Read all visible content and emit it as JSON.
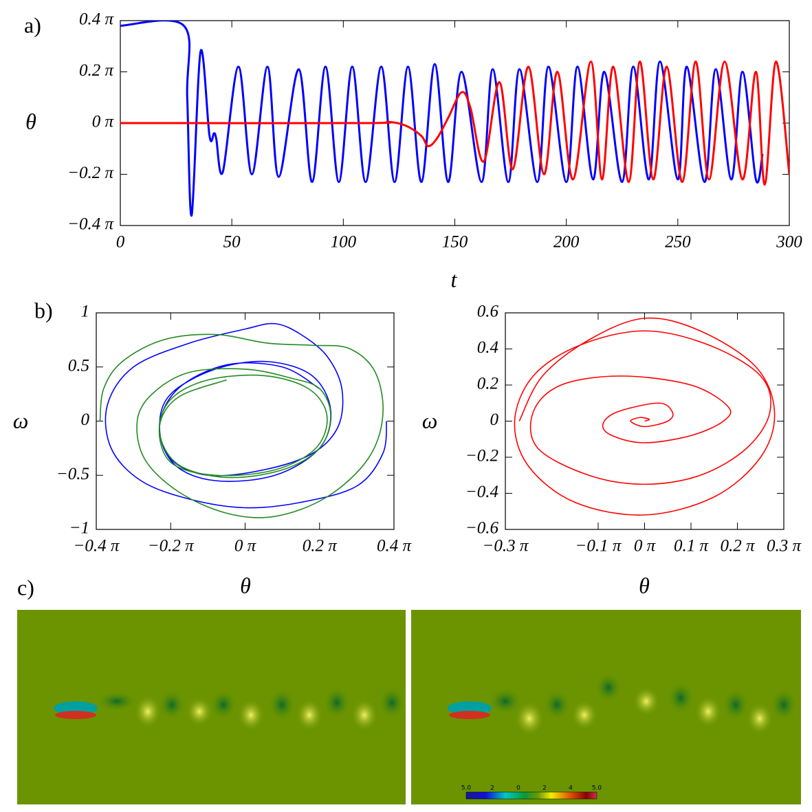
{
  "panel_labels": [
    "a)",
    "b)",
    "c)"
  ],
  "colorbar_labels": [
    "5.0",
    "2",
    "0",
    "2",
    "4",
    "5.0"
  ],
  "chart_data": [
    {
      "type": "line",
      "x_label": "t",
      "y_label": "θ",
      "xlim": [
        0,
        300
      ],
      "xticks": [
        0,
        50,
        100,
        150,
        200,
        250,
        300
      ],
      "ylim": [
        -0.4,
        0.4
      ],
      "yticks": [
        {
          "value": 0.4,
          "label": "0.4 π"
        },
        {
          "value": 0.2,
          "label": "0.2 π"
        },
        {
          "value": 0,
          "label": "0 π"
        },
        {
          "value": -0.2,
          "label": "−0.2 π"
        },
        {
          "value": -0.4,
          "label": "−0.4 π"
        }
      ],
      "series": [
        {
          "color": "#0000ff",
          "x": [
            0,
            28.5,
            30,
            32,
            36,
            40,
            42,
            43,
            46,
            53,
            59,
            66,
            71,
            80,
            86,
            92,
            98,
            104,
            110,
            117,
            123,
            129,
            135,
            141,
            147,
            153,
            162,
            167,
            174,
            179,
            187,
            192,
            200,
            205,
            212,
            217,
            225,
            230,
            237,
            242,
            250,
            254,
            262,
            267,
            274,
            279,
            285,
            288
          ],
          "values": [
            0.38,
            0.38,
            0.1,
            -0.36,
            0.28,
            -0.05,
            -0.04,
            -0.06,
            -0.19,
            0.22,
            -0.2,
            0.22,
            -0.21,
            0.21,
            -0.23,
            0.22,
            -0.23,
            0.22,
            -0.23,
            0.22,
            -0.23,
            0.22,
            -0.23,
            0.23,
            -0.23,
            0.2,
            -0.23,
            0.21,
            -0.23,
            0.21,
            -0.23,
            0.22,
            -0.23,
            0.22,
            -0.22,
            0.2,
            -0.23,
            0.22,
            -0.22,
            0.24,
            -0.22,
            0.22,
            -0.23,
            0.21,
            -0.22,
            0.2,
            -0.22,
            -0.12
          ]
        },
        {
          "color": "#ff0000",
          "x": [
            0,
            110,
            120,
            128,
            135,
            138,
            142,
            147,
            153,
            157,
            163,
            170,
            176,
            183,
            190,
            196,
            203,
            211,
            216,
            221,
            228,
            233,
            239,
            245,
            252,
            258,
            264,
            271,
            279,
            285,
            289,
            294,
            300
          ],
          "values": [
            0,
            0,
            0.005,
            -0.01,
            -0.05,
            -0.09,
            -0.06,
            0.02,
            0.12,
            0.06,
            -0.15,
            0.16,
            -0.18,
            0.22,
            -0.2,
            0.2,
            -0.22,
            0.24,
            -0.22,
            0.22,
            -0.23,
            0.24,
            -0.22,
            0.22,
            -0.23,
            0.24,
            -0.22,
            0.24,
            -0.22,
            0.2,
            -0.24,
            0.24,
            -0.2
          ]
        }
      ]
    },
    {
      "type": "line",
      "x_label": "θ",
      "y_label": "ω",
      "xlim": [
        -0.4,
        0.4
      ],
      "xticks": [
        {
          "value": -0.4,
          "label": "−0.4 π"
        },
        {
          "value": -0.2,
          "label": "−0.2 π"
        },
        {
          "value": 0,
          "label": "0 π"
        },
        {
          "value": 0.2,
          "label": "0.2 π"
        },
        {
          "value": 0.4,
          "label": "0.4 π"
        }
      ],
      "ylim": [
        -1,
        1
      ],
      "yticks": [
        1,
        0.5,
        0,
        {
          "value": -0.5,
          "label": "−0.5"
        },
        {
          "value": -1,
          "label": "−1"
        }
      ],
      "series": [
        {
          "color": "#0000ff",
          "x": [
            0.38,
            0.37,
            0.3,
            0.15,
            0,
            -0.15,
            -0.28,
            -0.36,
            -0.37,
            -0.3,
            -0.15,
            0,
            0.08,
            0.15,
            0.22,
            0.26,
            0.25,
            0.18,
            0.05,
            -0.1,
            -0.2,
            -0.23,
            -0.2,
            -0.08,
            0.06,
            0.18,
            0.23,
            0.2,
            0.08,
            -0.08,
            -0.19,
            -0.23,
            -0.18,
            -0.05,
            0.1,
            0.2
          ],
          "values": [
            0,
            -0.3,
            -0.6,
            -0.75,
            -0.8,
            -0.72,
            -0.55,
            -0.25,
            0.15,
            0.5,
            0.72,
            0.85,
            0.9,
            0.8,
            0.6,
            0.3,
            -0.05,
            -0.3,
            -0.45,
            -0.5,
            -0.35,
            -0.05,
            0.25,
            0.48,
            0.55,
            0.42,
            0.1,
            -0.25,
            -0.5,
            -0.55,
            -0.4,
            -0.05,
            0.3,
            0.52,
            0.5,
            0.3
          ]
        },
        {
          "color": "#228b22",
          "x": [
            -0.39,
            -0.38,
            -0.33,
            -0.22,
            -0.08,
            0.06,
            0.18,
            0.28,
            0.35,
            0.37,
            0.33,
            0.22,
            0.08,
            -0.05,
            -0.18,
            -0.27,
            -0.29,
            -0.25,
            -0.15,
            0,
            0.12,
            0.2,
            0.23,
            0.2,
            0.1,
            -0.05,
            -0.18,
            -0.23,
            -0.2,
            -0.1,
            0.05,
            0.17,
            0.22,
            0.19,
            0.08,
            -0.08,
            -0.2,
            -0.23,
            -0.18,
            -0.05
          ],
          "values": [
            0,
            0.3,
            0.55,
            0.75,
            0.8,
            0.72,
            0.7,
            0.67,
            0.45,
            0.05,
            -0.35,
            -0.7,
            -0.88,
            -0.85,
            -0.65,
            -0.35,
            0,
            0.25,
            0.45,
            0.48,
            0.4,
            0.3,
            0.05,
            -0.25,
            -0.45,
            -0.52,
            -0.4,
            -0.1,
            0.2,
            0.38,
            0.42,
            0.3,
            0.05,
            -0.25,
            -0.45,
            -0.5,
            -0.38,
            -0.05,
            0.22,
            0.38
          ]
        }
      ]
    },
    {
      "type": "line",
      "x_label": "θ",
      "y_label": "ω",
      "xlim": [
        -0.3,
        0.3
      ],
      "xticks": [
        {
          "value": -0.3,
          "label": "−0.3 π"
        },
        {
          "value": -0.1,
          "label": "−0.1 π"
        },
        {
          "value": 0,
          "label": "0 π"
        },
        {
          "value": 0.1,
          "label": "0.1 π"
        },
        {
          "value": 0.2,
          "label": "0.2 π"
        },
        {
          "value": 0.3,
          "label": "0.3 π"
        }
      ],
      "ylim": [
        -0.6,
        0.6
      ],
      "yticks": [
        0.6,
        0.4,
        0.2,
        0,
        {
          "value": -0.2,
          "label": "−0.2"
        },
        {
          "value": -0.4,
          "label": "−0.4"
        },
        {
          "value": -0.6,
          "label": "−0.6"
        }
      ],
      "series": [
        {
          "color": "#ff0000",
          "x": [
            0,
            0.01,
            -0.01,
            -0.03,
            0,
            0.05,
            0.06,
            0.03,
            -0.06,
            -0.09,
            -0.07,
            0,
            0.1,
            0.17,
            0.18,
            0.1,
            -0.05,
            -0.18,
            -0.24,
            -0.23,
            -0.12,
            0,
            0.12,
            0.22,
            0.27,
            0.25,
            0.14,
            0,
            -0.14,
            -0.24,
            -0.28,
            -0.25,
            -0.15,
            0,
            0.15,
            0.25,
            0.28,
            0.24,
            0.12,
            0,
            -0.12,
            -0.22,
            -0.27
          ],
          "values": [
            0,
            0.01,
            0.02,
            0,
            -0.03,
            0,
            0.05,
            0.1,
            0.05,
            -0.02,
            -0.08,
            -0.12,
            -0.08,
            0,
            0.08,
            0.2,
            0.25,
            0.2,
            0.05,
            -0.15,
            -0.3,
            -0.35,
            -0.3,
            -0.15,
            0.05,
            0.25,
            0.42,
            0.5,
            0.42,
            0.25,
            0,
            -0.25,
            -0.45,
            -0.52,
            -0.42,
            -0.2,
            0.05,
            0.3,
            0.5,
            0.57,
            0.45,
            0.25,
            0
          ]
        }
      ]
    }
  ]
}
